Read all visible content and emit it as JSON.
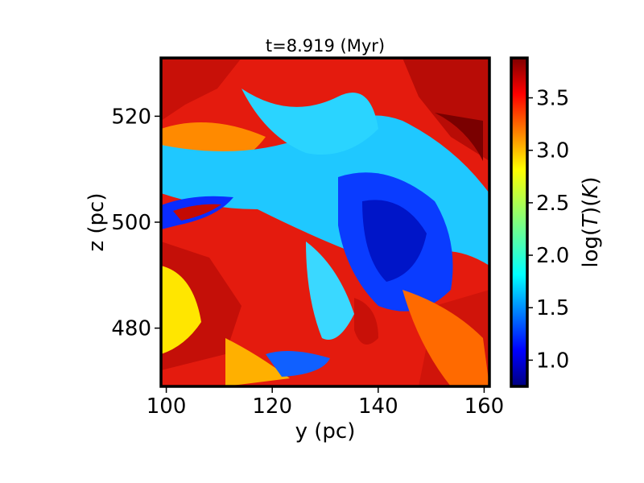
{
  "chart_data": {
    "type": "heatmap",
    "title": "t=8.919 (Myr)",
    "xlabel": "y (pc)",
    "ylabel": "z (pc)",
    "xlim": [
      99,
      161
    ],
    "ylim": [
      469,
      531
    ],
    "xticks": [
      100,
      120,
      140,
      160
    ],
    "yticks": [
      480,
      500,
      520
    ],
    "colorbar": {
      "label": "log(T) (K)",
      "label_math": {
        "fn": "log",
        "var": "T",
        "unit": "K"
      },
      "colormap": "jet",
      "range": [
        0.75,
        3.88
      ],
      "ticks": [
        1.0,
        1.5,
        2.0,
        2.5,
        3.0,
        3.5
      ]
    }
  }
}
